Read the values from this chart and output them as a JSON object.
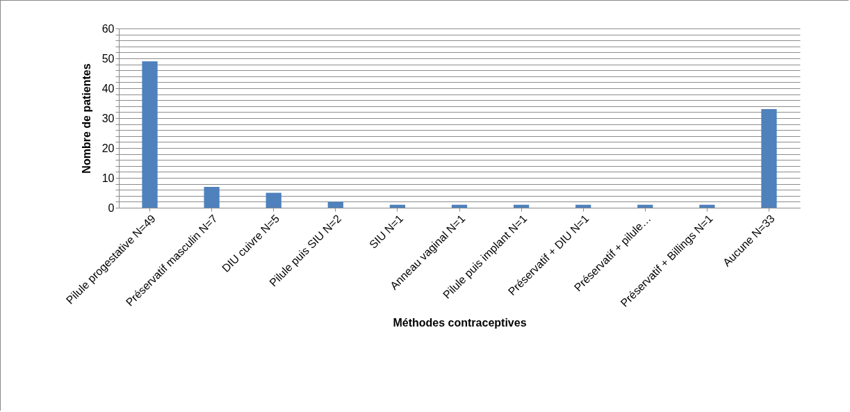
{
  "chart_data": {
    "type": "bar",
    "xlabel": "Méthodes contraceptives",
    "ylabel": "Nombre de patientes",
    "categories": [
      "Pilule progestative N=49",
      "Préservatif masculin N=7",
      "DIU cuivre N=5",
      "Pilule puis SIU N=2",
      "SIU N=1",
      "Anneau vaginal N=1",
      "Pilule puis implant N=1",
      "Préservatif + DIU N=1",
      "Préservatif + pilule…",
      "Préservatif + Billings N=1",
      "Aucune N=33"
    ],
    "values": [
      49,
      7,
      5,
      2,
      1,
      1,
      1,
      1,
      1,
      1,
      33
    ],
    "color": "#4f81bd",
    "ylim": [
      0,
      60
    ],
    "yticks": [
      0,
      {
        "value": 2,
        "label": null
      },
      {
        "value": 4,
        "label": null
      },
      {
        "value": 6,
        "label": null
      },
      {
        "value": 8,
        "label": null
      },
      10,
      {
        "value": 12,
        "label": null
      },
      {
        "value": 14,
        "label": null
      },
      {
        "value": 16,
        "label": null
      },
      {
        "value": 18,
        "label": null
      },
      20,
      {
        "value": 22,
        "label": null
      },
      {
        "value": 24,
        "label": null
      },
      {
        "value": 26,
        "label": null
      },
      {
        "value": 28,
        "label": null
      },
      30,
      {
        "value": 32,
        "label": null
      },
      {
        "value": 34,
        "label": null
      },
      {
        "value": 36,
        "label": null
      },
      {
        "value": 38,
        "label": null
      },
      40,
      {
        "value": 42,
        "label": null
      },
      {
        "value": 44,
        "label": null
      },
      {
        "value": 46,
        "label": null
      },
      {
        "value": 48,
        "label": null
      },
      50,
      {
        "value": 52,
        "label": null
      },
      {
        "value": 54,
        "label": null
      },
      {
        "value": 56,
        "label": null
      },
      {
        "value": 58,
        "label": null
      },
      60
    ],
    "grid": "y"
  }
}
